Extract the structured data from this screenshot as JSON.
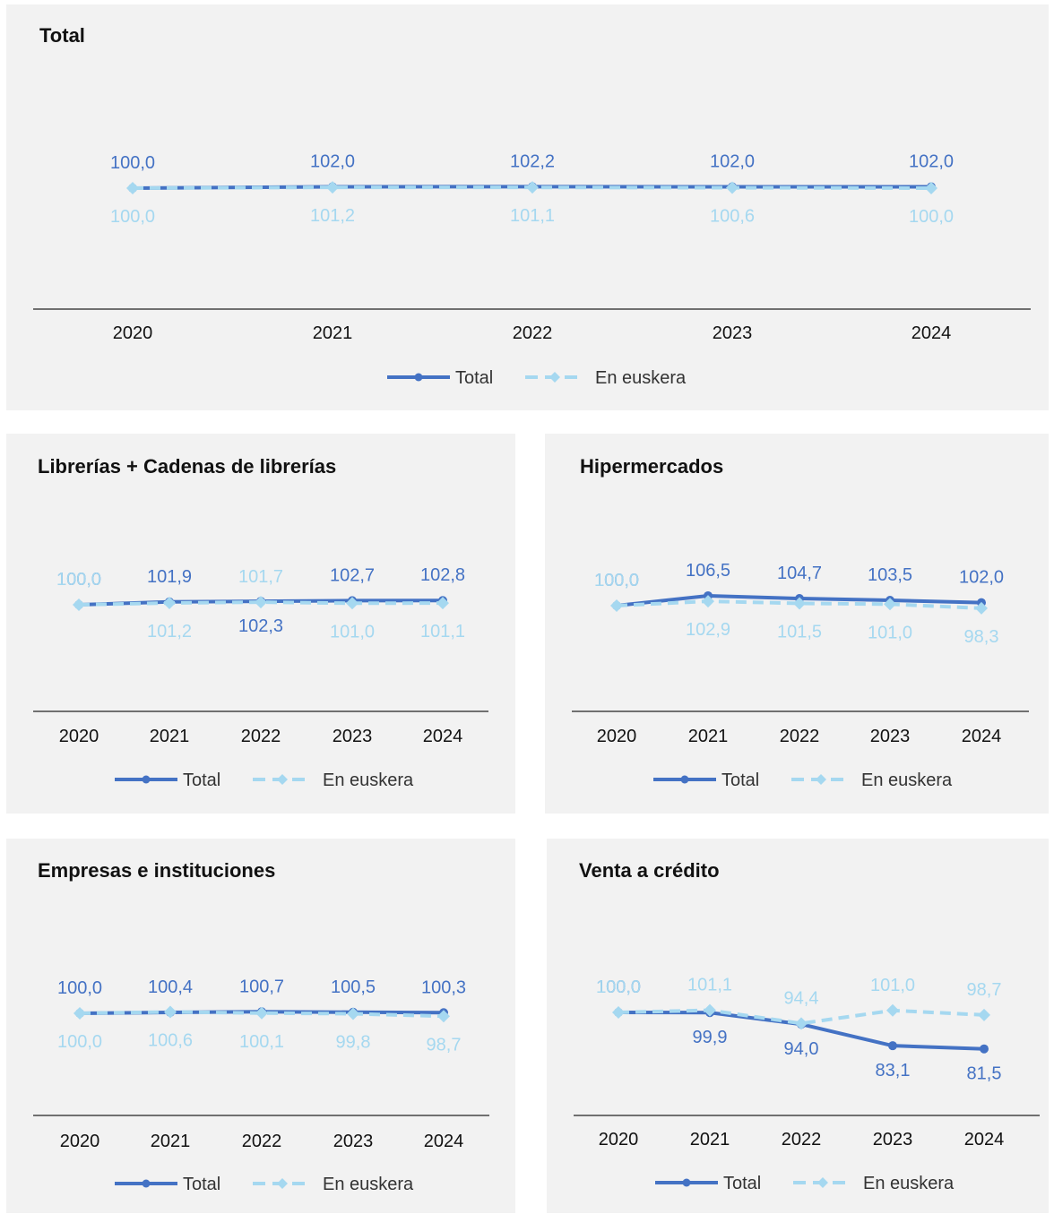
{
  "colors": {
    "total": "#4472c4",
    "euskera": "#a5d8f0",
    "axis": "#444444",
    "panel_bg": "#f2f2f2"
  },
  "legend": {
    "total_label": "Total",
    "euskera_label": "En euskera"
  },
  "chart_data": [
    {
      "type": "line",
      "title": "Total",
      "categories": [
        "2020",
        "2021",
        "2022",
        "2023",
        "2024"
      ],
      "series": [
        {
          "name": "Total",
          "values": [
            100.0,
            102.0,
            102.2,
            102.0,
            102.0
          ],
          "labels": [
            "100,0",
            "102,0",
            "102,2",
            "102,0",
            "102,0"
          ]
        },
        {
          "name": "En euskera",
          "values": [
            100.0,
            101.2,
            101.1,
            100.6,
            100.0
          ],
          "labels": [
            "100,0",
            "101,2",
            "101,1",
            "100,6",
            "100,0"
          ]
        }
      ],
      "legend_position": "bottom"
    },
    {
      "type": "line",
      "title": "Librerías + Cadenas de librerías",
      "categories": [
        "2020",
        "2021",
        "2022",
        "2023",
        "2024"
      ],
      "series": [
        {
          "name": "Total",
          "values": [
            100.0,
            101.9,
            102.3,
            102.7,
            102.8
          ],
          "labels": [
            "100,0",
            "101,9",
            "102,3",
            "102,7",
            "102,8"
          ]
        },
        {
          "name": "En euskera",
          "values": [
            100.0,
            101.2,
            101.7,
            101.0,
            101.1
          ],
          "labels": [
            "100,0",
            "101,2",
            "101,7",
            "101,0",
            "101,1"
          ]
        }
      ],
      "legend_position": "bottom"
    },
    {
      "type": "line",
      "title": "Hipermercados",
      "categories": [
        "2020",
        "2021",
        "2022",
        "2023",
        "2024"
      ],
      "series": [
        {
          "name": "Total",
          "values": [
            100.0,
            106.5,
            104.7,
            103.5,
            102.0
          ],
          "labels": [
            "100,0",
            "106,5",
            "104,7",
            "103,5",
            "102,0"
          ]
        },
        {
          "name": "En euskera",
          "values": [
            100.0,
            102.9,
            101.5,
            101.0,
            98.3
          ],
          "labels": [
            "100,0",
            "102,9",
            "101,5",
            "101,0",
            "98,3"
          ]
        }
      ],
      "legend_position": "bottom"
    },
    {
      "type": "line",
      "title": "Empresas e instituciones",
      "categories": [
        "2020",
        "2021",
        "2022",
        "2023",
        "2024"
      ],
      "series": [
        {
          "name": "Total",
          "values": [
            100.0,
            100.4,
            100.7,
            100.5,
            100.3
          ],
          "labels": [
            "100,0",
            "100,4",
            "100,7",
            "100,5",
            "100,3"
          ]
        },
        {
          "name": "En euskera",
          "values": [
            100.0,
            100.6,
            100.1,
            99.8,
            98.7
          ],
          "labels": [
            "100,0",
            "100,6",
            "100,1",
            "99,8",
            "98,7"
          ]
        }
      ],
      "legend_position": "bottom"
    },
    {
      "type": "line",
      "title": "Venta a crédito",
      "categories": [
        "2020",
        "2021",
        "2022",
        "2023",
        "2024"
      ],
      "series": [
        {
          "name": "Total",
          "values": [
            100.0,
            99.9,
            94.0,
            83.1,
            81.5
          ],
          "labels": [
            "100,0",
            "99,9",
            "94,0",
            "83,1",
            "81,5"
          ]
        },
        {
          "name": "En euskera",
          "values": [
            100.0,
            101.1,
            94.4,
            101.0,
            98.7
          ],
          "labels": [
            "100,0",
            "101,1",
            "94,4",
            "101,0",
            "98,7"
          ]
        }
      ],
      "legend_position": "bottom"
    }
  ]
}
